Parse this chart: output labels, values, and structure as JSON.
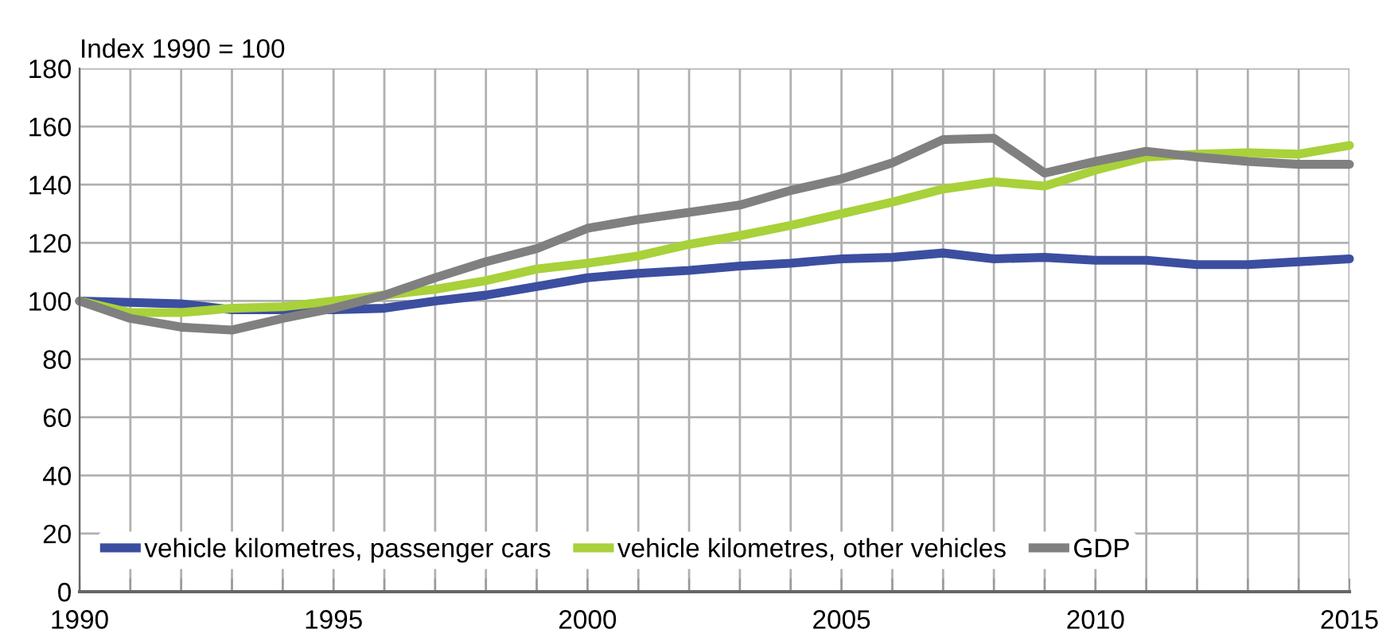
{
  "chart_data": {
    "type": "line",
    "ylabel": "Index 1990 = 100",
    "x": [
      1990,
      1991,
      1992,
      1993,
      1994,
      1995,
      1996,
      1997,
      1998,
      1999,
      2000,
      2001,
      2002,
      2003,
      2004,
      2005,
      2006,
      2007,
      2008,
      2009,
      2010,
      2011,
      2012,
      2013,
      2014,
      2015
    ],
    "series": [
      {
        "name": "vehicle kilometres, passenger cars",
        "color": "#3c4ea0",
        "values": [
          100,
          99.5,
          99,
          97,
          97,
          97,
          97.5,
          100,
          102,
          105,
          108,
          109.5,
          110.5,
          112,
          113,
          114.5,
          115,
          116.5,
          114.5,
          115,
          114,
          114,
          112.5,
          112.5,
          113.5,
          114.5
        ]
      },
      {
        "name": "vehicle kilometres, other vehicles",
        "color": "#a8d13a",
        "values": [
          100,
          96,
          96,
          97.5,
          98,
          100,
          102,
          104,
          107,
          111,
          113,
          115.5,
          119.5,
          122.5,
          126,
          130,
          134,
          138.5,
          141,
          139.5,
          145,
          149.5,
          150.5,
          151,
          150.5,
          153.5
        ]
      },
      {
        "name": "GDP",
        "color": "#808080",
        "values": [
          100,
          94,
          91,
          90,
          94,
          97.5,
          102,
          108,
          113.5,
          118,
          125,
          128,
          130.5,
          133,
          138,
          142,
          147.5,
          155.5,
          156,
          144,
          148,
          151.5,
          149.5,
          148,
          147,
          147
        ]
      }
    ],
    "xlim": [
      1990,
      2015
    ],
    "xticks": [
      1990,
      {
        "value": 1991,
        "label": null
      },
      {
        "value": 1992,
        "label": null
      },
      {
        "value": 1993,
        "label": null
      },
      {
        "value": 1994,
        "label": null
      },
      1995,
      {
        "value": 1996,
        "label": null
      },
      {
        "value": 1997,
        "label": null
      },
      {
        "value": 1998,
        "label": null
      },
      {
        "value": 1999,
        "label": null
      },
      2000,
      {
        "value": 2001,
        "label": null
      },
      {
        "value": 2002,
        "label": null
      },
      {
        "value": 2003,
        "label": null
      },
      {
        "value": 2004,
        "label": null
      },
      2005,
      {
        "value": 2006,
        "label": null
      },
      {
        "value": 2007,
        "label": null
      },
      {
        "value": 2008,
        "label": null
      },
      {
        "value": 2009,
        "label": null
      },
      2010,
      {
        "value": 2011,
        "label": null
      },
      {
        "value": 2012,
        "label": null
      },
      {
        "value": 2013,
        "label": null
      },
      {
        "value": 2014,
        "label": null
      },
      2015
    ],
    "ylim": [
      0,
      180
    ],
    "yticks": [
      0,
      20,
      40,
      60,
      80,
      100,
      120,
      140,
      160,
      180
    ],
    "grid": true,
    "legend": "bottom left",
    "marker": "none",
    "line_style": "solid"
  }
}
